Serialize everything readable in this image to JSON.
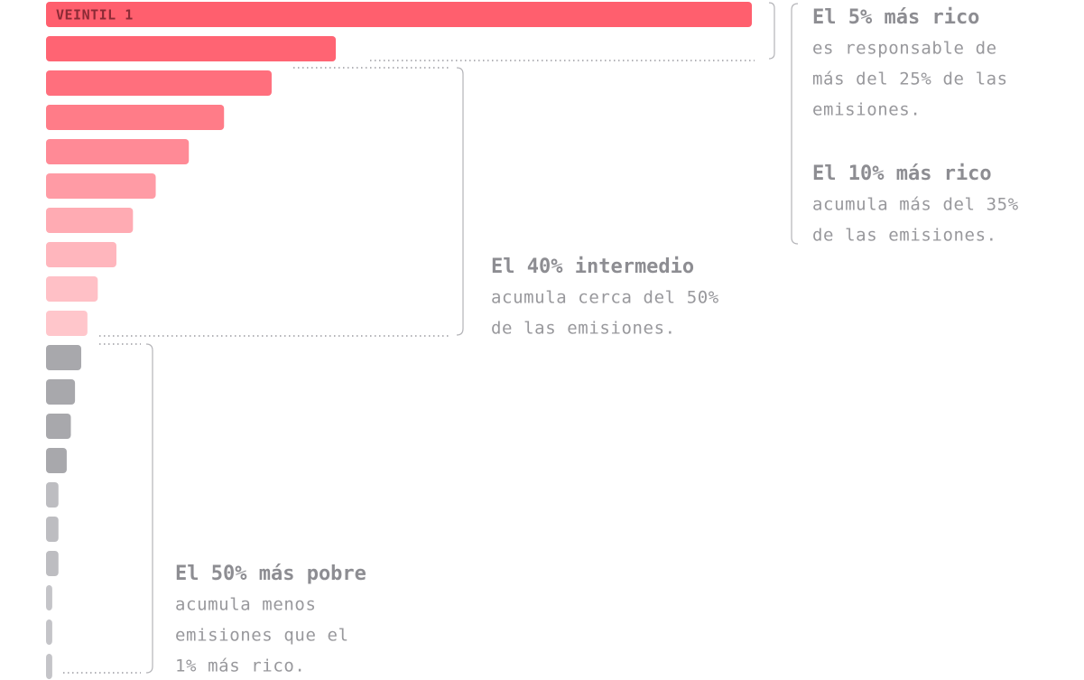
{
  "chart_data": {
    "type": "bar",
    "orientation": "horizontal",
    "categories": [
      "VEINTIL 1",
      null,
      null,
      null,
      null,
      null,
      null,
      null,
      null,
      null,
      null,
      null,
      null,
      null,
      null,
      null,
      null,
      null,
      null,
      null
    ],
    "values": [
      34.1,
      14.0,
      10.9,
      8.6,
      6.9,
      5.3,
      4.2,
      3.4,
      2.5,
      2.0,
      1.7,
      1.4,
      1.2,
      1.0,
      0.6,
      0.6,
      0.6,
      0.3,
      0.3,
      0.3
    ],
    "colors": [
      "#ff5f6e",
      "#ff6473",
      "#ff6f7d",
      "#ff7c88",
      "#ff8a96",
      "#ff9ba5",
      "#ffabb3",
      "#ffb6bd",
      "#ffc0c6",
      "#ffc6cb",
      "#a8a8ac",
      "#a8a8ac",
      "#a8a8ac",
      "#a8a8ac",
      "#bdbdc1",
      "#bdbdc1",
      "#bdbdc1",
      "#c4c4c8",
      "#c4c4c8",
      "#c4c4c8"
    ],
    "annotations": [
      {
        "title": "El 5% más rico",
        "lines": [
          "es responsable de",
          "más del 25% de las",
          "emisiones."
        ]
      },
      {
        "title": "El 10% más rico",
        "lines": [
          "acumula más del 35%",
          "de las emisiones."
        ]
      },
      {
        "title": "El 40% intermedio",
        "lines": [
          "acumula cerca del 50%",
          "de las emisiones."
        ]
      },
      {
        "title": "El 50% más pobre",
        "lines": [
          "acumula menos",
          "emisiones que el",
          "1% más rico."
        ]
      }
    ]
  }
}
